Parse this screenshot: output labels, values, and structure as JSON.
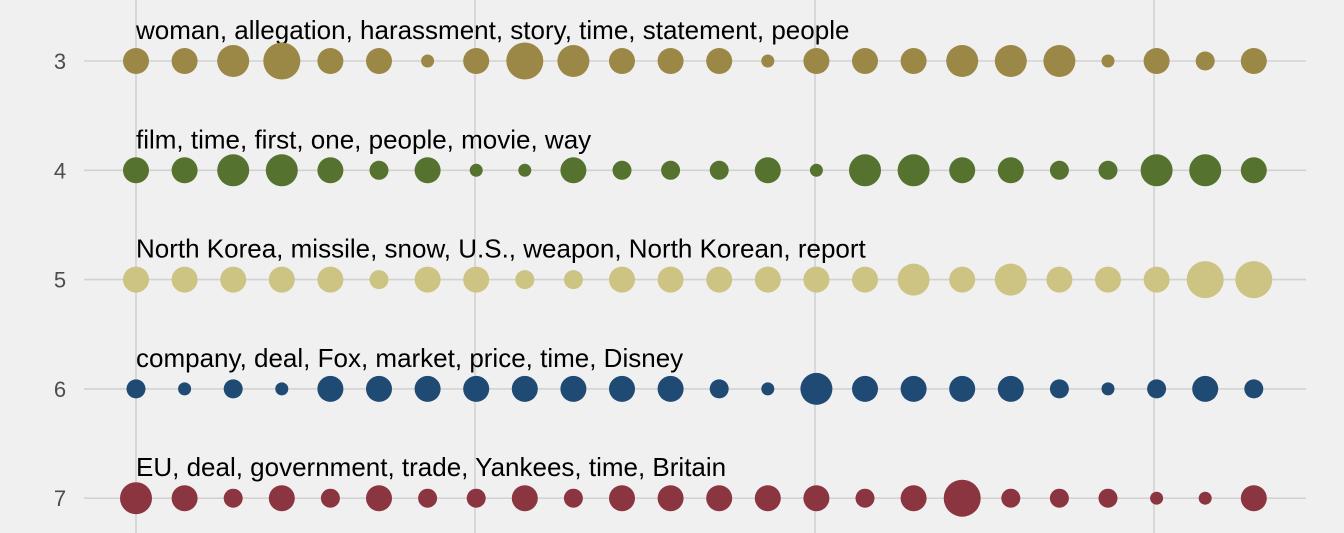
{
  "chart_data": {
    "type": "scatter",
    "title": "",
    "xlabel": "",
    "ylabel": "",
    "grid": true,
    "x_columns": 24,
    "series": [
      {
        "row": "3",
        "label": "woman, allegation, harassment, story, time, statement, people",
        "color": "#9b8846",
        "sizes": [
          3,
          3,
          4,
          5,
          3,
          3,
          1,
          3,
          5,
          4,
          3,
          3,
          3,
          1,
          3,
          3,
          3,
          4,
          4,
          4,
          1,
          3,
          2,
          3
        ]
      },
      {
        "row": "4",
        "label": "film, time, first, one, people, movie, way",
        "color": "#56722f",
        "sizes": [
          3,
          3,
          4,
          4,
          3,
          2,
          3,
          1,
          1,
          3,
          2,
          2,
          2,
          3,
          1,
          4,
          4,
          3,
          3,
          2,
          2,
          4,
          4,
          3
        ]
      },
      {
        "row": "5",
        "label": "North Korea, missile, snow, U.S., weapon, North Korean, report",
        "color": "#cdc383",
        "sizes": [
          3,
          3,
          3,
          3,
          3,
          2,
          3,
          3,
          2,
          2,
          3,
          3,
          3,
          3,
          3,
          3,
          4,
          3,
          4,
          3,
          3,
          3,
          5,
          5
        ]
      },
      {
        "row": "6",
        "label": "company, deal, Fox, market, price, time, Disney",
        "color": "#1f4a73",
        "sizes": [
          2,
          1,
          2,
          1,
          3,
          3,
          3,
          3,
          3,
          3,
          3,
          3,
          2,
          1,
          4,
          3,
          3,
          3,
          3,
          2,
          1,
          2,
          3,
          2
        ]
      },
      {
        "row": "7",
        "label": "EU, deal, government, trade, Yankees, time, Britain",
        "color": "#8b3540",
        "sizes": [
          4,
          3,
          2,
          3,
          2,
          3,
          2,
          2,
          3,
          2,
          3,
          3,
          3,
          3,
          3,
          2,
          3,
          5,
          2,
          2,
          2,
          1,
          1,
          3
        ]
      }
    ]
  }
}
